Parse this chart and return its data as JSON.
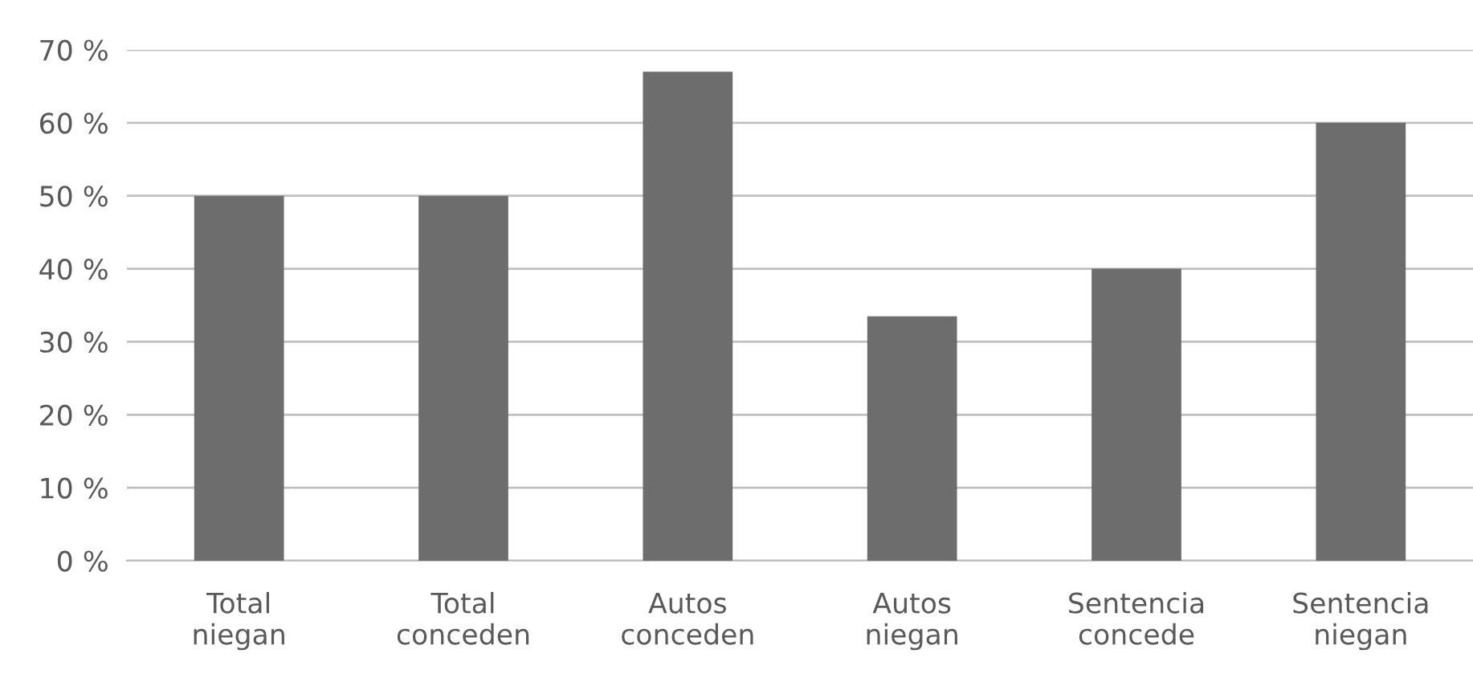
{
  "chart_data": {
    "type": "bar",
    "categories": [
      "Total\nniegan",
      "Total\nconceden",
      "Autos\nconceden",
      "Autos\nniegan",
      "Sentencia\nconcede",
      "Sentencia\nniegan"
    ],
    "values": [
      50,
      50,
      67,
      33.5,
      40,
      60
    ],
    "color": "#6d6d6d",
    "ylim": [
      0,
      70
    ],
    "yticks": [
      {
        "value": 0,
        "label": "0 %"
      },
      {
        "value": 10,
        "label": "10 %"
      },
      {
        "value": 20,
        "label": "20 %"
      },
      {
        "value": 30,
        "label": "30 %"
      },
      {
        "value": 40,
        "label": "40 %"
      },
      {
        "value": 50,
        "label": "50 %"
      },
      {
        "value": 60,
        "label": "60 %"
      },
      {
        "value": 70,
        "label": "70 %"
      }
    ],
    "grid": "y",
    "legend": false
  }
}
